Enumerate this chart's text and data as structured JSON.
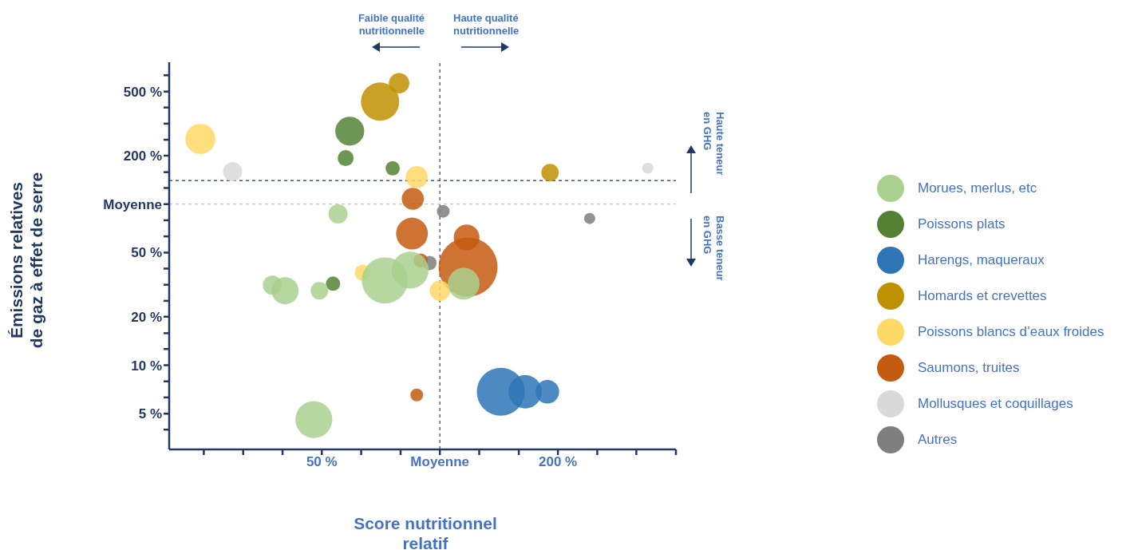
{
  "chart_data": {
    "type": "bubble",
    "xlabel": "Score nutritionnel relatif",
    "ylabel": "Émissions relatives de gaz à effet de serre",
    "annotations": [
      "Faible qualité nutritionnelle",
      "Haute qualité nutritionnelle",
      "Haute teneur en GHG",
      "Basse teneur en GHG"
    ],
    "log": "xy",
    "grid": false,
    "legend": "right",
    "xlim": [
      20.4,
      400
    ],
    "xticks": [
      {
        "value": 25,
        "label": null
      },
      {
        "value": 31.5,
        "label": null
      },
      {
        "value": 39.7,
        "label": null
      },
      {
        "value": 50,
        "label": "50 %"
      },
      {
        "value": 63,
        "label": null
      },
      {
        "value": 79.4,
        "label": null
      },
      {
        "value": 100,
        "label": "Moyenne"
      },
      {
        "value": 126,
        "label": null
      },
      {
        "value": 159,
        "label": null
      },
      {
        "value": 200,
        "label": "200 %"
      },
      {
        "value": 252,
        "label": null
      },
      {
        "value": 317,
        "label": null
      },
      {
        "value": 400,
        "label": null
      }
    ],
    "ylim": [
      3,
      760
    ],
    "yticks": [
      {
        "value": 3.98,
        "label": null
      },
      {
        "value": 5,
        "label": "5 %"
      },
      {
        "value": 6.31,
        "label": null
      },
      {
        "value": 7.94,
        "label": null
      },
      {
        "value": 10,
        "label": "10 %"
      },
      {
        "value": 12.6,
        "label": null
      },
      {
        "value": 15.8,
        "label": null
      },
      {
        "value": 20,
        "label": "20 %"
      },
      {
        "value": 25.1,
        "label": null
      },
      {
        "value": 31.6,
        "label": null
      },
      {
        "value": 39.8,
        "label": null
      },
      {
        "value": 50,
        "label": "50 %"
      },
      {
        "value": 63.1,
        "label": null
      },
      {
        "value": 79.4,
        "label": null
      },
      {
        "value": 100,
        "label": "Moyenne"
      },
      {
        "value": 126,
        "label": null
      },
      {
        "value": 158,
        "label": null
      },
      {
        "value": 200,
        "label": "200 %"
      },
      {
        "value": 251,
        "label": null
      },
      {
        "value": 316,
        "label": null
      },
      {
        "value": 398,
        "label": null
      },
      {
        "value": 500,
        "label": "500 %"
      },
      {
        "value": 631,
        "label": null
      }
    ],
    "ref_lines": [
      {
        "axis": "x",
        "value": 100,
        "color": "#44546a",
        "line_style": "dashed"
      },
      {
        "axis": "y",
        "value": 140,
        "color": "#44546a",
        "line_style": "dashed"
      },
      {
        "axis": "y",
        "value": 100,
        "color": "#c8c8c8",
        "line_style": "dashed"
      }
    ],
    "series": [
      {
        "name": "Morues, merlus, etc",
        "color": "#a9d08e",
        "x": [
          55,
          37.4,
          40.3,
          49.3,
          72.4,
          84,
          47.7,
          115
        ],
        "values": [
          87,
          31.4,
          29,
          29,
          33.6,
          38.9,
          4.6,
          32.1
        ],
        "sizes": [
          0.105,
          0.105,
          0.21,
          0.088,
          0.61,
          0.39,
          0.39,
          0.29
        ]
      },
      {
        "name": "Poissons plats",
        "color": "#548235",
        "x": [
          58.9,
          57.5,
          75.8,
          53.4
        ],
        "values": [
          284,
          193,
          167,
          32.1
        ],
        "sizes": [
          0.24,
          0.073,
          0.059,
          0.059
        ]
      },
      {
        "name": "Harengs, maqueraux",
        "color": "#2e75b6",
        "x": [
          143,
          165,
          188
        ],
        "values": [
          6.84,
          6.84,
          6.84
        ],
        "sizes": [
          0.66,
          0.32,
          0.16
        ]
      },
      {
        "name": "Homards et crevettes",
        "color": "#bf9000",
        "x": [
          70.4,
          78.7,
          191
        ],
        "values": [
          433,
          563,
          157
        ],
        "sizes": [
          0.42,
          0.12,
          0.088
        ]
      },
      {
        "name": "Poissons blancs d’eaux froides",
        "color": "#ffd966",
        "x": [
          24.5,
          87.3,
          63.5,
          100
        ],
        "values": [
          254,
          147,
          37.6,
          29
        ],
        "sizes": [
          0.26,
          0.14,
          0.073,
          0.12
        ]
      },
      {
        "name": "Saumons, truites",
        "color": "#c55a11",
        "x": [
          85.3,
          84.9,
          89.4,
          87.3,
          117,
          118
        ],
        "values": [
          108,
          65.7,
          44.6,
          6.54,
          62.1,
          40.7
        ],
        "sizes": [
          0.14,
          0.29,
          0.059,
          0.047,
          0.19,
          1
        ]
      },
      {
        "name": "Mollusques et coquillages",
        "color": "#d9d9d9",
        "x": [
          29.6,
          339
        ],
        "values": [
          159,
          167
        ],
        "sizes": [
          0.105,
          0.036
        ]
      },
      {
        "name": "Autres",
        "color": "#7f7f7f",
        "x": [
          102,
          241,
          94.1
        ],
        "values": [
          90.3,
          81.5,
          43.1
        ],
        "sizes": [
          0.047,
          0.036,
          0.059
        ]
      }
    ]
  }
}
